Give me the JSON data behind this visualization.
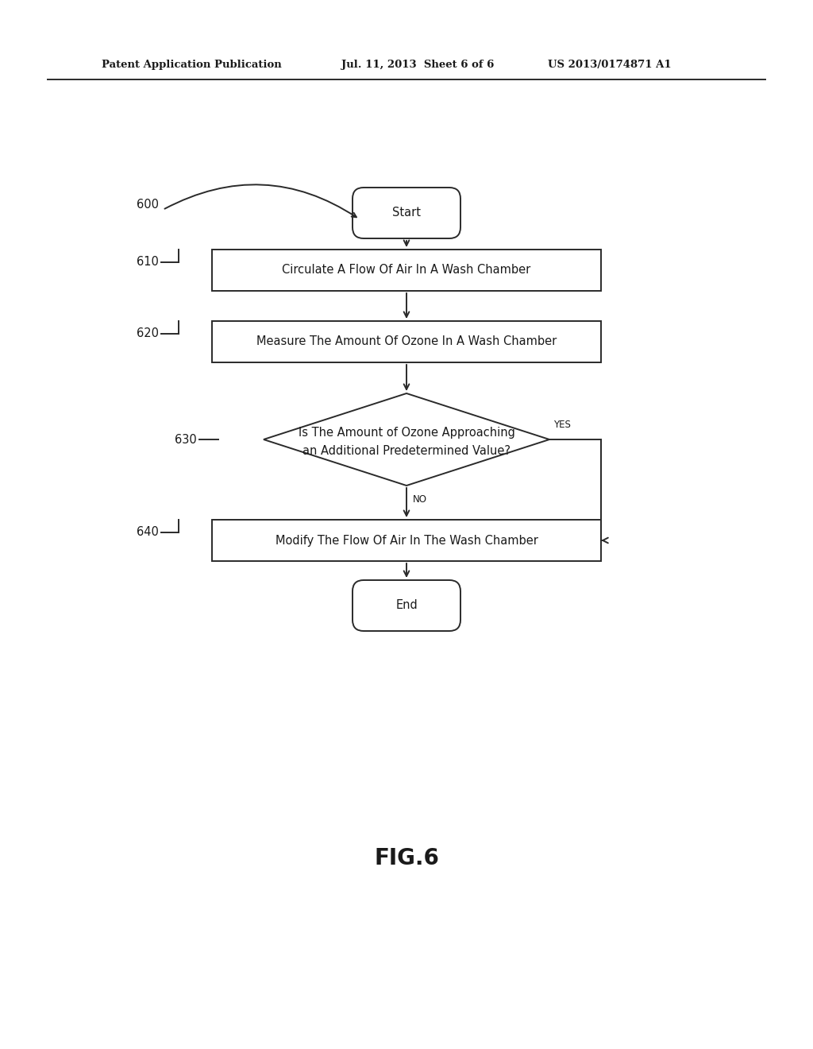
{
  "bg_color": "#ffffff",
  "line_color": "#2a2a2a",
  "text_color": "#1a1a1a",
  "header_left": "Patent Application Publication",
  "header_mid": "Jul. 11, 2013  Sheet 6 of 6",
  "header_right": "US 2013/0174871 A1",
  "figure_label": "FIG.6",
  "start_label": "Start",
  "end_label": "End",
  "box610_text": "Circulate A Flow Of Air In A Wash Chamber",
  "box620_text": "Measure The Amount Of Ozone In A Wash Chamber",
  "diamond_text_line1": "Is The Amount of Ozone Approaching",
  "diamond_text_line2": "an Additional Predetermined Value?",
  "box640_text": "Modify The Flow Of Air In The Wash Chamber",
  "yes_text": "YES",
  "no_text": "NO",
  "label_600": "600",
  "label_610": "610",
  "label_620": "620",
  "label_630": "630",
  "label_640": "640",
  "font_size_header": 9.5,
  "font_size_body": 10.5,
  "font_size_label": 10.5,
  "font_size_yn": 8.5,
  "font_size_fig": 20
}
